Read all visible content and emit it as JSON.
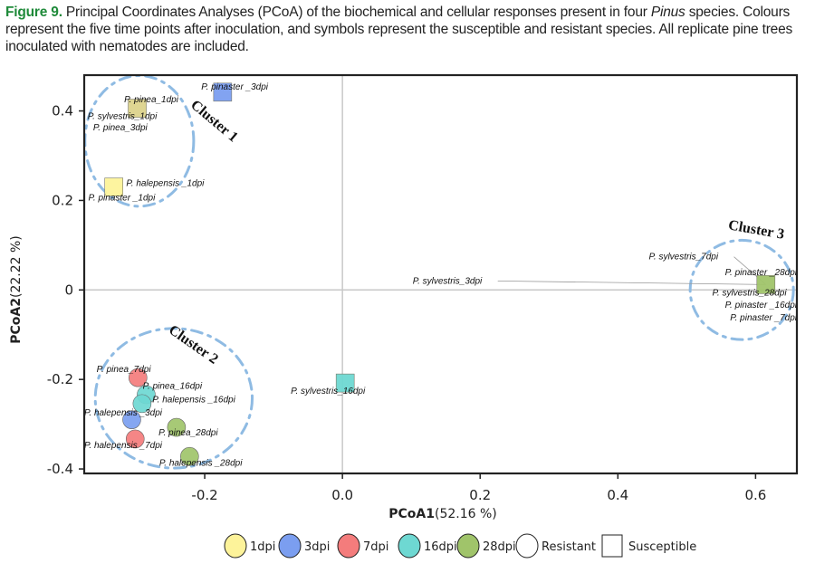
{
  "caption": {
    "figure_label": "Figure 9.",
    "text_1": " Principal Coordinates Analyses (PCoA) of the biochemical and cellular responses present in four ",
    "text_italic": "Pinus",
    "text_2": " species. Colours represent the five time points after inoculation, and symbols represent the susceptible and resistant species. All replicate pine trees inoculated with nematodes are included."
  },
  "colors": {
    "1dpi": "#fdf39a",
    "3dpi": "#7b9ef0",
    "7dpi": "#f47c7c",
    "16dpi": "#6ed8d2",
    "28dpi": "#a0c46a",
    "overlap_1_3dpi": "#dcd38c",
    "cluster_ring": "#8fbbe3",
    "zero_line": "#c8c8c8"
  },
  "chart_data": {
    "type": "scatter",
    "title": "",
    "xlabel_bold": "PCoA1",
    "xlabel_rest": "(52.16 %)",
    "ylabel_bold": "PCoA2",
    "ylabel_rest": "(22.22 %)",
    "xlim": [
      -0.375,
      0.66
    ],
    "ylim": [
      -0.41,
      0.48
    ],
    "xticks": [
      {
        "v": -0.2,
        "label": "-0.2"
      },
      {
        "v": 0.0,
        "label": "0.0"
      },
      {
        "v": 0.2,
        "label": "0.2"
      },
      {
        "v": 0.4,
        "label": "0.4"
      },
      {
        "v": 0.6,
        "label": "0.6"
      }
    ],
    "yticks": [
      {
        "v": 0.4,
        "label": "0.4"
      },
      {
        "v": 0.2,
        "label": "0.2"
      },
      {
        "v": 0.0,
        "label": "0"
      },
      {
        "v": -0.2,
        "label": "-0.2"
      },
      {
        "v": -0.4,
        "label": "-0.4"
      }
    ],
    "grid": false,
    "zero_lines": true,
    "points": [
      {
        "label": "P. pinaster _3dpi",
        "x": -0.174,
        "y": 0.442,
        "time": "3dpi",
        "shape": "square",
        "lx": -0.205,
        "ly": 0.448,
        "anchor": "start"
      },
      {
        "label": "P. pinea_1dpi",
        "x": -0.298,
        "y": 0.406,
        "time": "overlap_1_3dpi",
        "shape": "square",
        "lx": -0.317,
        "ly": 0.419,
        "anchor": "start"
      },
      {
        "label": "P. sylvestris_1dpi",
        "x": -0.298,
        "y": 0.406,
        "time": "1dpi",
        "shape": "none",
        "lx": -0.37,
        "ly": 0.382,
        "anchor": "start"
      },
      {
        "label": "P. pinea_3dpi",
        "x": -0.298,
        "y": 0.406,
        "time": "3dpi",
        "shape": "none",
        "lx": -0.362,
        "ly": 0.357,
        "anchor": "start"
      },
      {
        "label": "P. halepensis _1dpi",
        "x": -0.332,
        "y": 0.23,
        "time": "1dpi",
        "shape": "square",
        "lx": -0.314,
        "ly": 0.232,
        "anchor": "start"
      },
      {
        "label": "P. pinaster _1dpi",
        "x": -0.332,
        "y": 0.23,
        "time": "1dpi",
        "shape": "none",
        "lx": -0.369,
        "ly": 0.2,
        "anchor": "start"
      },
      {
        "label": "P. sylvestris_3dpi",
        "x": 0.615,
        "y": 0.012,
        "time": "3dpi",
        "shape": "none",
        "lx": 0.102,
        "ly": 0.014,
        "anchor": "start",
        "leader": true
      },
      {
        "label": "P. sylvestris_7dpi",
        "x": 0.615,
        "y": 0.012,
        "time": "7dpi",
        "shape": "none",
        "lx": 0.445,
        "ly": 0.068,
        "anchor": "start",
        "leader": true
      },
      {
        "label": "P. pinaster _28dpi",
        "x": 0.615,
        "y": 0.012,
        "time": "28dpi",
        "shape": "square",
        "lx": 0.66,
        "ly": 0.033,
        "anchor": "end"
      },
      {
        "label": "P. sylvestris_28dpi",
        "x": 0.615,
        "y": 0.012,
        "time": "28dpi",
        "shape": "none",
        "lx": 0.645,
        "ly": -0.013,
        "anchor": "end"
      },
      {
        "label": "P. pinaster _16dpi",
        "x": 0.615,
        "y": 0.012,
        "time": "16dpi",
        "shape": "none",
        "lx": 0.66,
        "ly": -0.04,
        "anchor": "end"
      },
      {
        "label": "P. pinaster _7dpi",
        "x": 0.615,
        "y": 0.012,
        "time": "7dpi",
        "shape": "none",
        "lx": 0.66,
        "ly": -0.068,
        "anchor": "end"
      },
      {
        "label": "P. sylvestris_16dpi",
        "x": 0.004,
        "y": -0.208,
        "time": "16dpi",
        "shape": "square",
        "lx": -0.075,
        "ly": -0.232,
        "anchor": "start"
      },
      {
        "label": "P. pinea_7dpi",
        "x": -0.297,
        "y": -0.196,
        "time": "7dpi",
        "shape": "circle",
        "lx": -0.357,
        "ly": -0.183,
        "anchor": "start"
      },
      {
        "label": "P. pinea_16dpi",
        "x": -0.285,
        "y": -0.234,
        "time": "16dpi",
        "shape": "circle",
        "lx": -0.29,
        "ly": -0.221,
        "anchor": "start"
      },
      {
        "label": "P. halepensis _16dpi",
        "x": -0.291,
        "y": -0.254,
        "time": "16dpi",
        "shape": "circle",
        "lx": -0.276,
        "ly": -0.251,
        "anchor": "start"
      },
      {
        "label": "P. halepensis _3dpi",
        "x": -0.306,
        "y": -0.29,
        "time": "3dpi",
        "shape": "circle",
        "lx": -0.375,
        "ly": -0.281,
        "anchor": "start"
      },
      {
        "label": "P. halepensis _7dpi",
        "x": -0.301,
        "y": -0.333,
        "time": "7dpi",
        "shape": "circle",
        "lx": -0.375,
        "ly": -0.353,
        "anchor": "start"
      },
      {
        "label": "P. pinea_28dpi",
        "x": -0.241,
        "y": -0.307,
        "time": "28dpi",
        "shape": "circle",
        "lx": -0.267,
        "ly": -0.325,
        "anchor": "start"
      },
      {
        "label": "P. halepensis _28dpi",
        "x": -0.222,
        "y": -0.372,
        "time": "28dpi",
        "shape": "circle",
        "lx": -0.266,
        "ly": -0.393,
        "anchor": "start"
      }
    ],
    "clusters": [
      {
        "name": "Cluster 1",
        "cx": -0.295,
        "cy": 0.333,
        "rx": 0.079,
        "ry": 0.146,
        "label_x": -0.19,
        "label_y": 0.37,
        "rotate": 40
      },
      {
        "name": "Cluster 2",
        "cx": -0.245,
        "cy": -0.242,
        "rx": 0.114,
        "ry": 0.156,
        "label_x": -0.22,
        "label_y": -0.13,
        "rotate": 35
      },
      {
        "name": "Cluster 3",
        "cx": 0.58,
        "cy": 0.0,
        "rx": 0.075,
        "ry": 0.111,
        "label_x": 0.6,
        "label_y": 0.125,
        "rotate": 10
      }
    ],
    "legend": {
      "position": "bottom-center",
      "items": [
        {
          "label": "1dpi",
          "shape": "circle",
          "color_key": "1dpi"
        },
        {
          "label": "3dpi",
          "shape": "circle",
          "color_key": "3dpi"
        },
        {
          "label": "7dpi",
          "shape": "circle",
          "color_key": "7dpi"
        },
        {
          "label": "16dpi",
          "shape": "circle",
          "color_key": "16dpi"
        },
        {
          "label": "28dpi",
          "shape": "circle",
          "color_key": "28dpi"
        },
        {
          "label": "Resistant",
          "shape": "circle",
          "color_key": "none"
        },
        {
          "label": "Susceptible",
          "shape": "square",
          "color_key": "none"
        }
      ]
    }
  }
}
